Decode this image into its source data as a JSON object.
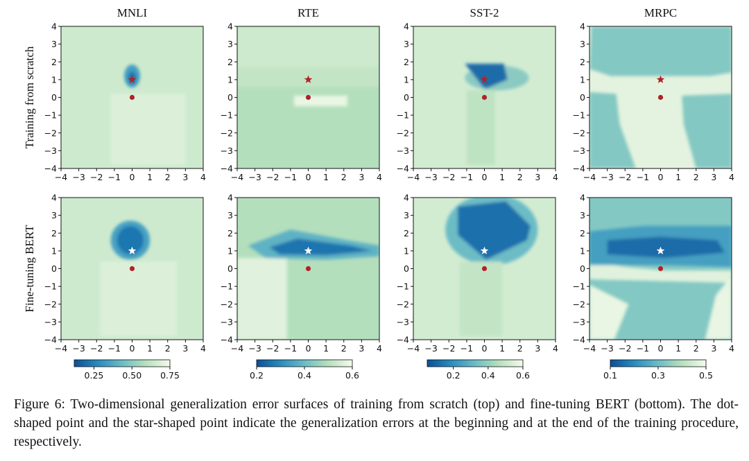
{
  "caption": "Figure 6:  Two-dimensional generalization error surfaces of training from scratch (top) and fine-tuning BERT (bottom). The dot-shaped point and the star-shaped point indicate the generalization errors at the beginning and at the end of the training procedure, respectively.",
  "chart_data": {
    "type": "heatmap",
    "column_titles": [
      "MNLI",
      "RTE",
      "SST-2",
      "MRPC"
    ],
    "row_labels": [
      "Training from scratch",
      "Fine-tuning BERT"
    ],
    "xlim": [
      -4,
      4
    ],
    "ylim": [
      -4,
      4
    ],
    "ticks": [
      -4,
      -3,
      -2,
      -1,
      0,
      1,
      2,
      3,
      4
    ],
    "dot_point": [
      0,
      0
    ],
    "star_point": [
      0,
      1
    ],
    "colormap": [
      "#0b4f96",
      "#2a8cbe",
      "#6cbcc6",
      "#b7e0bd",
      "#f4fbec"
    ],
    "colorbars": [
      {
        "task": "MNLI",
        "min": 0.12,
        "max": 0.75,
        "ticks": [
          0.25,
          0.5,
          0.75
        ],
        "tick_labels": [
          "0.25",
          "0.50",
          "0.75"
        ]
      },
      {
        "task": "RTE",
        "min": 0.2,
        "max": 0.6,
        "ticks": [
          0.2,
          0.4,
          0.6
        ],
        "tick_labels": [
          "0.2",
          "0.4",
          "0.6"
        ]
      },
      {
        "task": "SST-2",
        "min": 0.05,
        "max": 0.6,
        "ticks": [
          0.2,
          0.4,
          0.6
        ],
        "tick_labels": [
          "0.2",
          "0.4",
          "0.6"
        ]
      },
      {
        "task": "MRPC",
        "min": 0.1,
        "max": 0.5,
        "ticks": [
          0.1,
          0.3,
          0.5
        ],
        "tick_labels": [
          "0.1",
          "0.3",
          "0.5"
        ]
      }
    ],
    "panels": [
      {
        "task": "MNLI",
        "row": "Training from scratch",
        "background_norm": 0.84,
        "regions": [
          {
            "shape": "ellipse",
            "cx": 0,
            "cy": 1.2,
            "rx": 0.45,
            "ry": 0.65,
            "norm": 0.35
          },
          {
            "shape": "ellipse",
            "cx": 0,
            "cy": 1.1,
            "rx": 0.22,
            "ry": 0.35,
            "norm": 0.15
          },
          {
            "shape": "rect",
            "x0": -1.2,
            "x1": 3.0,
            "y0": -3.8,
            "y1": 0.2,
            "norm": 0.9
          }
        ]
      },
      {
        "task": "RTE",
        "row": "Training from scratch",
        "background_norm": 0.74,
        "regions": [
          {
            "shape": "rect",
            "x0": -4,
            "x1": 4,
            "y0": 1.7,
            "y1": 4,
            "norm": 0.84
          },
          {
            "shape": "rect",
            "x0": -4,
            "x1": 4,
            "y0": 0.6,
            "y1": 1.7,
            "norm": 0.8
          },
          {
            "shape": "rect",
            "x0": -0.8,
            "x1": 2.2,
            "y0": -0.5,
            "y1": 0.1,
            "norm": 0.95
          }
        ]
      },
      {
        "task": "SST-2",
        "row": "Training from scratch",
        "background_norm": 0.86,
        "regions": [
          {
            "shape": "ellipse",
            "cx": 0.7,
            "cy": 1.1,
            "rx": 1.8,
            "ry": 0.7,
            "norm": 0.6
          },
          {
            "shape": "polygon",
            "points": [
              [
                -1.1,
                1.9
              ],
              [
                1.1,
                1.9
              ],
              [
                1.3,
                1.0
              ],
              [
                0.1,
                0.5
              ],
              [
                -0.1,
                0.6
              ]
            ],
            "norm": 0.12
          },
          {
            "shape": "rect",
            "x0": -1.0,
            "x1": 0.6,
            "y0": -3.8,
            "y1": 0.4,
            "norm": 0.78
          }
        ]
      },
      {
        "task": "MRPC",
        "row": "Training from scratch",
        "background_norm": 0.93,
        "regions": [
          {
            "shape": "polygon",
            "points": [
              [
                -3.9,
                4
              ],
              [
                4,
                4
              ],
              [
                4,
                1.4
              ],
              [
                2.8,
                1.2
              ],
              [
                -2.8,
                1.2
              ],
              [
                -4,
                1.6
              ]
            ],
            "norm": 0.58
          },
          {
            "shape": "polygon",
            "points": [
              [
                -4,
                -4
              ],
              [
                -1.4,
                -4
              ],
              [
                -2.3,
                -1.5
              ],
              [
                -2.5,
                0.2
              ],
              [
                -4,
                0.3
              ]
            ],
            "norm": 0.58
          },
          {
            "shape": "polygon",
            "points": [
              [
                1.2,
                0.1
              ],
              [
                4,
                0.2
              ],
              [
                4,
                -4
              ],
              [
                2.0,
                -4
              ],
              [
                1.3,
                -1.5
              ]
            ],
            "norm": 0.58
          }
        ]
      },
      {
        "task": "MNLI",
        "row": "Fine-tuning BERT",
        "background_norm": 0.84,
        "regions": [
          {
            "shape": "ellipse",
            "cx": -0.1,
            "cy": 1.6,
            "rx": 1.1,
            "ry": 1.1,
            "norm": 0.36
          },
          {
            "shape": "ellipse",
            "cx": -0.1,
            "cy": 1.6,
            "rx": 0.75,
            "ry": 0.8,
            "norm": 0.16
          },
          {
            "shape": "rect",
            "x0": -1.8,
            "x1": 2.5,
            "y0": -3.8,
            "y1": 0.4,
            "norm": 0.9
          }
        ]
      },
      {
        "task": "RTE",
        "row": "Fine-tuning BERT",
        "background_norm": 0.74,
        "regions": [
          {
            "shape": "rect",
            "x0": -4,
            "x1": -1.2,
            "y0": -4,
            "y1": 0.6,
            "norm": 0.92
          },
          {
            "shape": "polygon",
            "points": [
              [
                -3.4,
                1.3
              ],
              [
                -1.0,
                2.2
              ],
              [
                2.2,
                1.6
              ],
              [
                4,
                1.3
              ],
              [
                4,
                0.7
              ],
              [
                1.0,
                0.5
              ],
              [
                -2.4,
                0.6
              ]
            ],
            "norm": 0.45
          },
          {
            "shape": "polygon",
            "points": [
              [
                -2.2,
                1.2
              ],
              [
                -0.6,
                1.7
              ],
              [
                2.4,
                1.3
              ],
              [
                3.6,
                1.0
              ],
              [
                1.0,
                0.75
              ],
              [
                -1.6,
                0.8
              ]
            ],
            "norm": 0.15
          }
        ]
      },
      {
        "task": "SST-2",
        "row": "Fine-tuning BERT",
        "background_norm": 0.86,
        "regions": [
          {
            "shape": "ellipse",
            "cx": 0.4,
            "cy": 2.2,
            "rx": 2.6,
            "ry": 2.0,
            "norm": 0.5
          },
          {
            "shape": "polygon",
            "points": [
              [
                -1.5,
                3.5
              ],
              [
                1.2,
                3.8
              ],
              [
                2.6,
                2.4
              ],
              [
                2.4,
                1.6
              ],
              [
                0.1,
                0.5
              ],
              [
                -1.5,
                1.9
              ]
            ],
            "norm": 0.13
          },
          {
            "shape": "rect",
            "x0": -1.4,
            "x1": 1.0,
            "y0": -3.8,
            "y1": 0.4,
            "norm": 0.8
          }
        ]
      },
      {
        "task": "MRPC",
        "row": "Fine-tuning BERT",
        "background_norm": 0.58,
        "regions": [
          {
            "shape": "polygon",
            "points": [
              [
                -4,
                -4
              ],
              [
                -2.6,
                -4
              ],
              [
                -1.8,
                -2.0
              ],
              [
                -4,
                -0.9
              ]
            ],
            "norm": 0.95
          },
          {
            "shape": "polygon",
            "points": [
              [
                -4,
                0.4
              ],
              [
                -2.0,
                0.1
              ],
              [
                0.2,
                -0.1
              ],
              [
                4,
                -0.1
              ],
              [
                4,
                -0.8
              ],
              [
                -4,
                -0.6
              ]
            ],
            "norm": 0.92
          },
          {
            "shape": "polygon",
            "points": [
              [
                2.5,
                -4
              ],
              [
                4,
                -4
              ],
              [
                4,
                -0.4
              ],
              [
                3.1,
                -1.5
              ]
            ],
            "norm": 0.95
          },
          {
            "shape": "polygon",
            "points": [
              [
                -4,
                2.1
              ],
              [
                -1.0,
                2.4
              ],
              [
                4,
                2.4
              ],
              [
                4,
                0.1
              ],
              [
                0.5,
                0.2
              ],
              [
                -4,
                0.2
              ]
            ],
            "norm": 0.35
          },
          {
            "shape": "polygon",
            "points": [
              [
                -3.0,
                1.6
              ],
              [
                0.0,
                1.8
              ],
              [
                3.2,
                1.6
              ],
              [
                3.6,
                0.9
              ],
              [
                0.2,
                0.6
              ],
              [
                -3.0,
                0.8
              ]
            ],
            "norm": 0.12
          }
        ]
      }
    ]
  }
}
